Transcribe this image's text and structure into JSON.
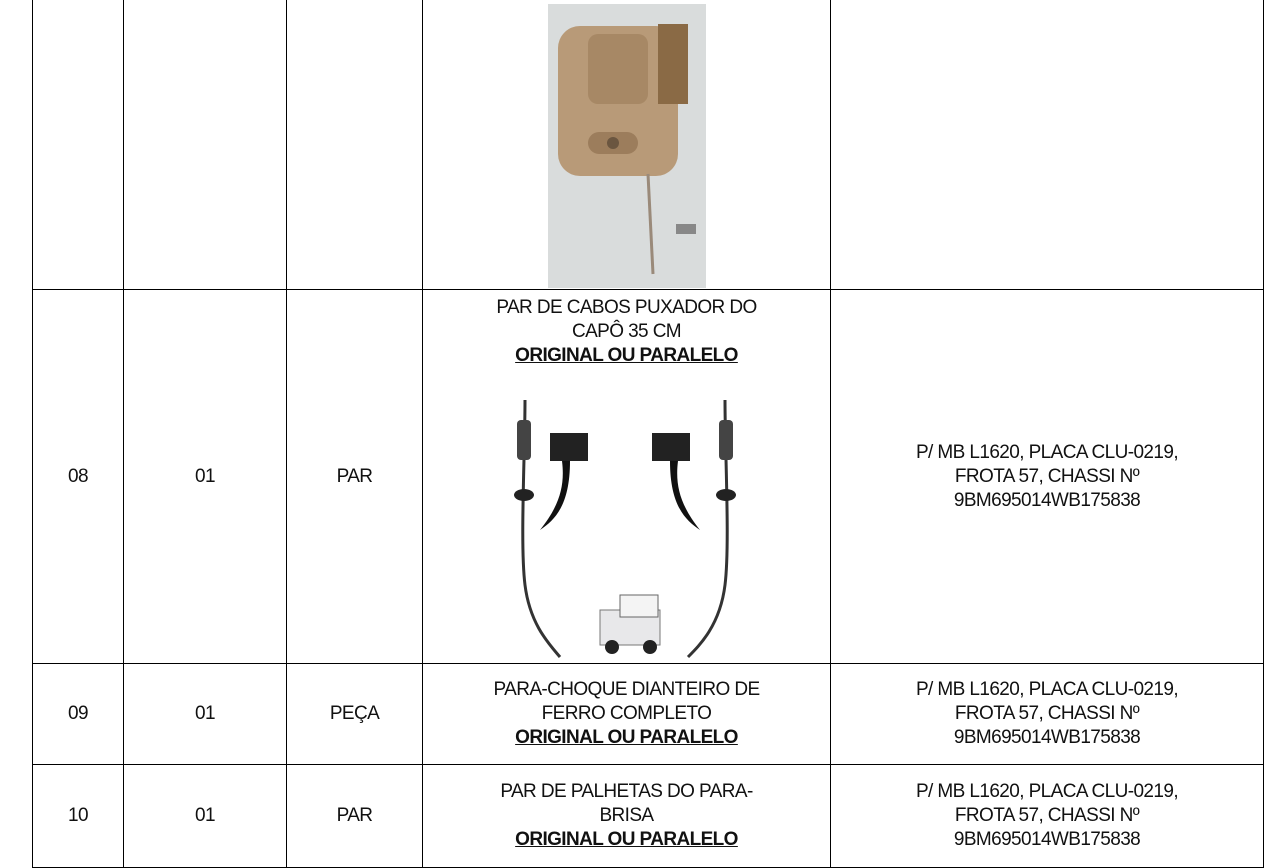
{
  "table": {
    "rows": [
      {
        "item": null,
        "quantity": null,
        "unit": null,
        "description": [],
        "emphasis": null,
        "notes": []
      },
      {
        "item": "08",
        "quantity": "01",
        "unit": "PAR",
        "description": [
          "PAR DE CABOS PUXADOR DO",
          "CAPÔ 35 CM"
        ],
        "emphasis": "ORIGINAL OU PARALELO",
        "notes": [
          "P/ MB L1620, PLACA CLU-0219,",
          "FROTA 57, CHASSI Nº",
          "9BM695014WB175838"
        ]
      },
      {
        "item": "09",
        "quantity": "01",
        "unit": "PEÇA",
        "description": [
          "PARA-CHOQUE DIANTEIRO DE",
          "FERRO COMPLETO"
        ],
        "emphasis": "ORIGINAL OU PARALELO",
        "notes": [
          "P/ MB L1620, PLACA CLU-0219,",
          "FROTA 57, CHASSI Nº",
          "9BM695014WB175838"
        ]
      },
      {
        "item": "10",
        "quantity": "01",
        "unit": "PAR",
        "description": [
          "PAR DE PALHETAS DO PARA-",
          "BRISA"
        ],
        "emphasis": "ORIGINAL OU PARALELO",
        "notes": [
          "P/ MB L1620, PLACA CLU-0219,",
          "FROTA 57, CHASSI Nº",
          "9BM695014WB175838"
        ]
      }
    ]
  }
}
